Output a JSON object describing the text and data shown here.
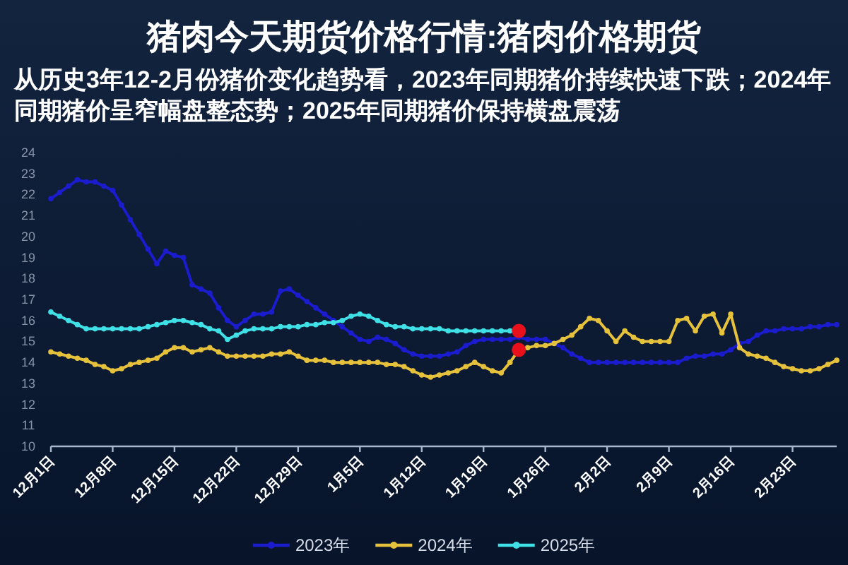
{
  "chart_data": {
    "type": "line",
    "title": "猪肉今天期货价格行情:猪肉价格期货",
    "subtitle": "从历史3年12-2月份猪价变化趋势看，2023年同期猪价持续快速下跌；2024年同期猪价呈窄幅盘整态势；2025年同期猪价保持横盘震荡",
    "categories": [
      "12月1日",
      null,
      null,
      null,
      null,
      null,
      null,
      "12月8日",
      null,
      null,
      null,
      null,
      null,
      null,
      "12月15日",
      null,
      null,
      null,
      null,
      null,
      null,
      "12月22日",
      null,
      null,
      null,
      null,
      null,
      null,
      "12月29日",
      null,
      null,
      null,
      null,
      null,
      null,
      "1月5日",
      null,
      null,
      null,
      null,
      null,
      null,
      "1月12日",
      null,
      null,
      null,
      null,
      null,
      null,
      "1月19日",
      null,
      null,
      null,
      null,
      null,
      null,
      "1月26日",
      null,
      null,
      null,
      null,
      null,
      null,
      "2月2日",
      null,
      null,
      null,
      null,
      null,
      null,
      "2月9日",
      null,
      null,
      null,
      null,
      null,
      null,
      "2月16日",
      null,
      null,
      null,
      null,
      null,
      null,
      "2月23日",
      null,
      null,
      null,
      null,
      null
    ],
    "series": [
      {
        "name": "2023年",
        "color": "#1c1ccf",
        "values": [
          21.8,
          22.1,
          22.4,
          22.7,
          22.6,
          22.6,
          22.4,
          22.2,
          21.5,
          20.8,
          20.1,
          19.4,
          18.7,
          19.3,
          19.1,
          19.0,
          17.7,
          17.5,
          17.3,
          16.6,
          16.0,
          15.7,
          16.0,
          16.3,
          16.3,
          16.4,
          17.4,
          17.5,
          17.2,
          16.9,
          16.6,
          16.3,
          16.0,
          15.7,
          15.4,
          15.1,
          15.0,
          15.2,
          15.1,
          14.9,
          14.6,
          14.4,
          14.3,
          14.3,
          14.3,
          14.4,
          14.5,
          14.8,
          15.0,
          15.1,
          15.1,
          15.1,
          15.1,
          15.2,
          15.1,
          15.1,
          15.1,
          14.9,
          14.7,
          14.4,
          14.2,
          14.0,
          14.0,
          14.0,
          14.0,
          14.0,
          14.0,
          14.0,
          14.0,
          14.0,
          14.0,
          14.0,
          14.2,
          14.3,
          14.3,
          14.4,
          14.4,
          14.6,
          14.9,
          15.0,
          15.3,
          15.5,
          15.5,
          15.6,
          15.6,
          15.6,
          15.7,
          15.7,
          15.8,
          15.8
        ]
      },
      {
        "name": "2024年",
        "color": "#e6c13c",
        "values": [
          14.5,
          14.4,
          14.3,
          14.2,
          14.1,
          13.9,
          13.8,
          13.6,
          13.7,
          13.9,
          14.0,
          14.1,
          14.2,
          14.5,
          14.7,
          14.7,
          14.5,
          14.6,
          14.7,
          14.5,
          14.3,
          14.3,
          14.3,
          14.3,
          14.3,
          14.4,
          14.4,
          14.5,
          14.3,
          14.1,
          14.1,
          14.1,
          14.0,
          14.0,
          14.0,
          14.0,
          14.0,
          14.0,
          13.9,
          13.9,
          13.8,
          13.6,
          13.4,
          13.3,
          13.4,
          13.5,
          13.6,
          13.8,
          14.0,
          13.8,
          13.6,
          13.5,
          14.0,
          14.6,
          14.7,
          14.8,
          14.8,
          14.9,
          15.1,
          15.3,
          15.7,
          16.1,
          16.0,
          15.5,
          15.0,
          15.5,
          15.2,
          15.0,
          15.0,
          15.0,
          15.0,
          16.0,
          16.1,
          15.5,
          16.2,
          16.3,
          15.4,
          16.3,
          14.7,
          14.4,
          14.3,
          14.2,
          14.0,
          13.8,
          13.7,
          13.6,
          13.6,
          13.7,
          13.9,
          14.1
        ]
      },
      {
        "name": "2025年",
        "color": "#3fe0e6",
        "values": [
          16.4,
          16.2,
          16.0,
          15.8,
          15.6,
          15.6,
          15.6,
          15.6,
          15.6,
          15.6,
          15.6,
          15.7,
          15.8,
          15.9,
          16.0,
          16.0,
          15.9,
          15.8,
          15.6,
          15.5,
          15.1,
          15.3,
          15.5,
          15.6,
          15.6,
          15.6,
          15.7,
          15.7,
          15.7,
          15.8,
          15.8,
          15.9,
          15.9,
          16.0,
          16.2,
          16.3,
          16.2,
          16.0,
          15.8,
          15.7,
          15.7,
          15.6,
          15.6,
          15.6,
          15.6,
          15.5,
          15.5,
          15.5,
          15.5,
          15.5,
          15.5,
          15.5,
          15.5,
          15.5,
          null,
          null,
          null,
          null,
          null,
          null,
          null,
          null,
          null,
          null,
          null,
          null,
          null,
          null,
          null,
          null,
          null,
          null,
          null,
          null,
          null,
          null,
          null,
          null,
          null,
          null,
          null,
          null,
          null,
          null,
          null,
          null,
          null,
          null,
          null,
          null
        ]
      },
      {
        "type": "scatter",
        "color": "#e8101a",
        "values": [
          null,
          null,
          null,
          null,
          null,
          null,
          null,
          null,
          null,
          null,
          null,
          null,
          null,
          null,
          null,
          null,
          null,
          null,
          null,
          null,
          null,
          null,
          null,
          null,
          null,
          null,
          null,
          null,
          null,
          null,
          null,
          null,
          null,
          null,
          null,
          null,
          null,
          null,
          null,
          null,
          null,
          null,
          null,
          null,
          null,
          null,
          null,
          null,
          null,
          null,
          null,
          null,
          null,
          15.5,
          null,
          null,
          null,
          null,
          null,
          null,
          null,
          null,
          null,
          null,
          null,
          null,
          null,
          null,
          null,
          null,
          null,
          null,
          null,
          null,
          null,
          null,
          null,
          null,
          null,
          null,
          null,
          null,
          null,
          null,
          null,
          null,
          null,
          null,
          null,
          null
        ]
      },
      {
        "type": "scatter",
        "color": "#e8101a",
        "values": [
          null,
          null,
          null,
          null,
          null,
          null,
          null,
          null,
          null,
          null,
          null,
          null,
          null,
          null,
          null,
          null,
          null,
          null,
          null,
          null,
          null,
          null,
          null,
          null,
          null,
          null,
          null,
          null,
          null,
          null,
          null,
          null,
          null,
          null,
          null,
          null,
          null,
          null,
          null,
          null,
          null,
          null,
          null,
          null,
          null,
          null,
          null,
          null,
          null,
          null,
          null,
          null,
          null,
          14.6,
          null,
          null,
          null,
          null,
          null,
          null,
          null,
          null,
          null,
          null,
          null,
          null,
          null,
          null,
          null,
          null,
          null,
          null,
          null,
          null,
          null,
          null,
          null,
          null,
          null,
          null,
          null,
          null,
          null,
          null,
          null,
          null,
          null,
          null,
          null,
          null
        ]
      }
    ],
    "ylim": [
      10,
      24
    ],
    "yticks": [
      10,
      11,
      12,
      13,
      14,
      15,
      16,
      17,
      18,
      19,
      20,
      21,
      22,
      23,
      24
    ],
    "legend": "bottom",
    "marker": "circle"
  }
}
